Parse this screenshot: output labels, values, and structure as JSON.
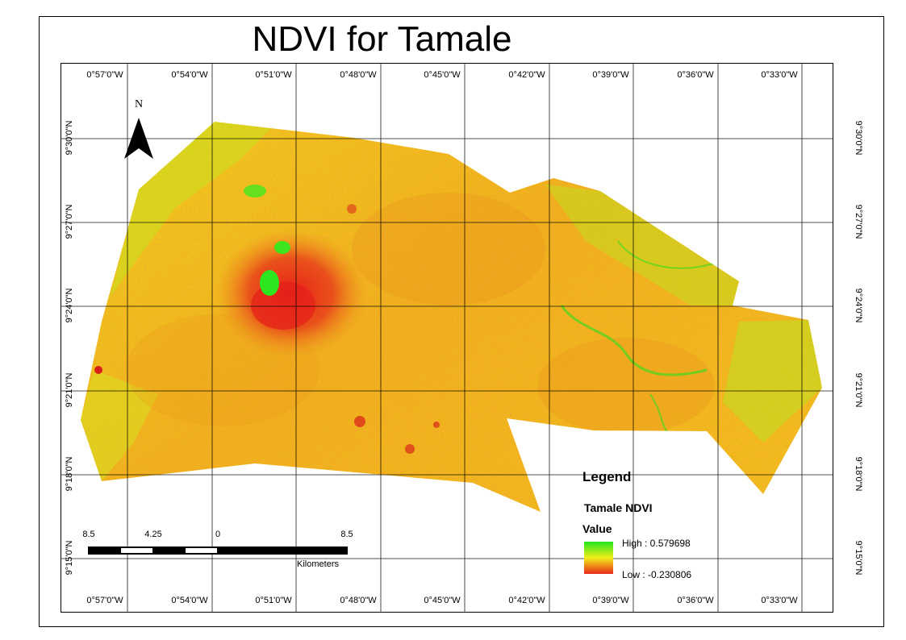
{
  "map": {
    "title": "NDVI for Tamale",
    "north_label": "N",
    "longitude_labels": [
      "0°57'0\"W",
      "0°54'0\"W",
      "0°51'0\"W",
      "0°48'0\"W",
      "0°45'0\"W",
      "0°42'0\"W",
      "0°39'0\"W",
      "0°36'0\"W",
      "0°33'0\"W"
    ],
    "latitude_labels": [
      "9°30'0\"N",
      "9°27'0\"N",
      "9°24'0\"N",
      "9°21'0\"N",
      "9°18'0\"N",
      "9°15'0\"N"
    ],
    "colors": {
      "high": "#22e61e",
      "mid": "#f2ee1a",
      "orange": "#f0a41c",
      "low": "#e8281a"
    }
  },
  "scale_bar": {
    "labels": [
      "8.5",
      "4.25",
      "0",
      "8.5"
    ],
    "units": "Kilometers"
  },
  "legend": {
    "title": "Legend",
    "layer_name": "Tamale NDVI",
    "field": "Value",
    "high_label": "High : 0.579698",
    "low_label": "Low : -0.230806"
  }
}
